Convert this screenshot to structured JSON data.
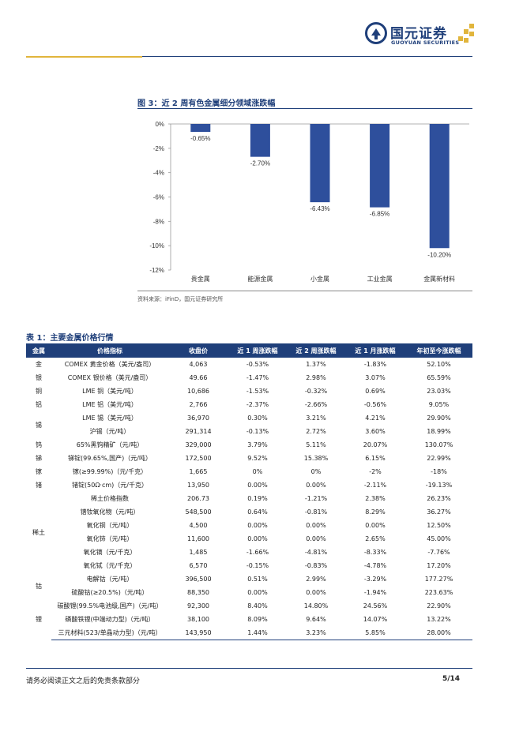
{
  "header": {
    "company_name": "国元证券",
    "company_name_en": "GUOYUAN SECURITIES",
    "brand_color": "#1f3f7a",
    "accent_color": "#e1b53c"
  },
  "figure": {
    "title": "图 3：近 2 周有色金属细分领域涨跌幅",
    "source": "资料来源：iFinD，国元证券研究所"
  },
  "chart_data": {
    "type": "bar",
    "categories": [
      "贵金属",
      "能源金属",
      "小金属",
      "工业金属",
      "金属新材料"
    ],
    "values": [
      -0.65,
      -2.7,
      -6.43,
      -6.85,
      -10.2
    ],
    "value_labels": [
      "-0.65%",
      "-2.70%",
      "-6.43%",
      "-6.85%",
      "-10.20%"
    ],
    "yticks": [
      0,
      -2,
      -4,
      -6,
      -8,
      -10,
      -12
    ],
    "ytick_labels": [
      "0%",
      "-2%",
      "-4%",
      "-6%",
      "-8%",
      "-10%",
      "-12%"
    ],
    "ylim": [
      -12,
      0
    ],
    "bar_color": "#2e4f9c",
    "grid": false,
    "title": "",
    "xlabel": "",
    "ylabel": ""
  },
  "table": {
    "title": "表 1：主要金属价格行情",
    "headers": [
      "金属",
      "价格指标",
      "收盘价",
      "近 1 周涨跌幅",
      "近 2 周涨跌幅",
      "近 1 月涨跌幅",
      "年初至今涨跌幅"
    ],
    "groups": [
      {
        "metal": "金",
        "rows": [
          [
            "COMEX 黄金价格（美元/盎司）",
            "4,063",
            "-0.53%",
            "1.37%",
            "-1.83%",
            "52.10%"
          ]
        ]
      },
      {
        "metal": "银",
        "rows": [
          [
            "COMEX 银价格（美元/盎司）",
            "49.66",
            "-1.47%",
            "2.98%",
            "3.07%",
            "65.59%"
          ]
        ]
      },
      {
        "metal": "铜",
        "rows": [
          [
            "LME 铜（美元/吨）",
            "10,686",
            "-1.53%",
            "-0.32%",
            "0.69%",
            "23.03%"
          ]
        ]
      },
      {
        "metal": "铝",
        "rows": [
          [
            "LME 铝（美元/吨）",
            "2,766",
            "-2.37%",
            "-2.66%",
            "-0.56%",
            "9.05%"
          ]
        ]
      },
      {
        "metal": "锡",
        "rows": [
          [
            "LME 锡（美元/吨）",
            "36,970",
            "0.30%",
            "3.21%",
            "4.21%",
            "29.90%"
          ],
          [
            "沪锡（元/吨）",
            "291,314",
            "-0.13%",
            "2.72%",
            "3.60%",
            "18.99%"
          ]
        ]
      },
      {
        "metal": "钨",
        "rows": [
          [
            "65%黑钨精矿（元/吨）",
            "329,000",
            "3.79%",
            "5.11%",
            "20.07%",
            "130.07%"
          ]
        ]
      },
      {
        "metal": "锑",
        "rows": [
          [
            "锑锭(99.65%,国产)（元/吨）",
            "172,500",
            "9.52%",
            "15.38%",
            "6.15%",
            "22.99%"
          ]
        ]
      },
      {
        "metal": "镓",
        "rows": [
          [
            "镓(≥99.99%)（元/千克）",
            "1,665",
            "0%",
            "0%",
            "-2%",
            "-18%"
          ]
        ]
      },
      {
        "metal": "锗",
        "rows": [
          [
            "锗锭(50Ω·cm)（元/千克）",
            "13,950",
            "0.00%",
            "0.00%",
            "-2.11%",
            "-19.13%"
          ]
        ]
      },
      {
        "metal": "稀土",
        "rows": [
          [
            "稀土价格指数",
            "206.73",
            "0.19%",
            "-1.21%",
            "2.38%",
            "26.23%"
          ],
          [
            "镨钕氧化物（元/吨）",
            "548,500",
            "0.64%",
            "-0.81%",
            "8.29%",
            "36.27%"
          ],
          [
            "氧化铜（元/吨）",
            "4,500",
            "0.00%",
            "0.00%",
            "0.00%",
            "12.50%"
          ],
          [
            "氧化铈（元/吨）",
            "11,600",
            "0.00%",
            "0.00%",
            "2.65%",
            "45.00%"
          ],
          [
            "氧化镝（元/千克）",
            "1,485",
            "-1.66%",
            "-4.81%",
            "-8.33%",
            "-7.76%"
          ],
          [
            "氧化铽（元/千克）",
            "6,570",
            "-0.15%",
            "-0.83%",
            "-4.78%",
            "17.20%"
          ]
        ]
      },
      {
        "metal": "钴",
        "rows": [
          [
            "电解钴（元/吨）",
            "396,500",
            "0.51%",
            "2.99%",
            "-3.29%",
            "177.27%"
          ],
          [
            "硫酸钴(≥20.5%)（元/吨）",
            "88,350",
            "0.00%",
            "0.00%",
            "-1.94%",
            "223.63%"
          ]
        ]
      },
      {
        "metal": "锂",
        "rows": [
          [
            "碳酸锂(99.5%电池级,国产)（元/吨）",
            "92,300",
            "8.40%",
            "14.80%",
            "24.56%",
            "22.90%"
          ],
          [
            "磷酸铁锂(中端动力型)（元/吨）",
            "38,100",
            "8.09%",
            "9.64%",
            "14.07%",
            "13.22%"
          ],
          [
            "三元材料(523/单晶动力型)（元/吨）",
            "143,950",
            "1.44%",
            "3.23%",
            "5.85%",
            "28.00%"
          ]
        ]
      }
    ]
  },
  "footer": {
    "disclaimer": "请务必阅读正文之后的免责条款部分",
    "page": "5/14"
  }
}
